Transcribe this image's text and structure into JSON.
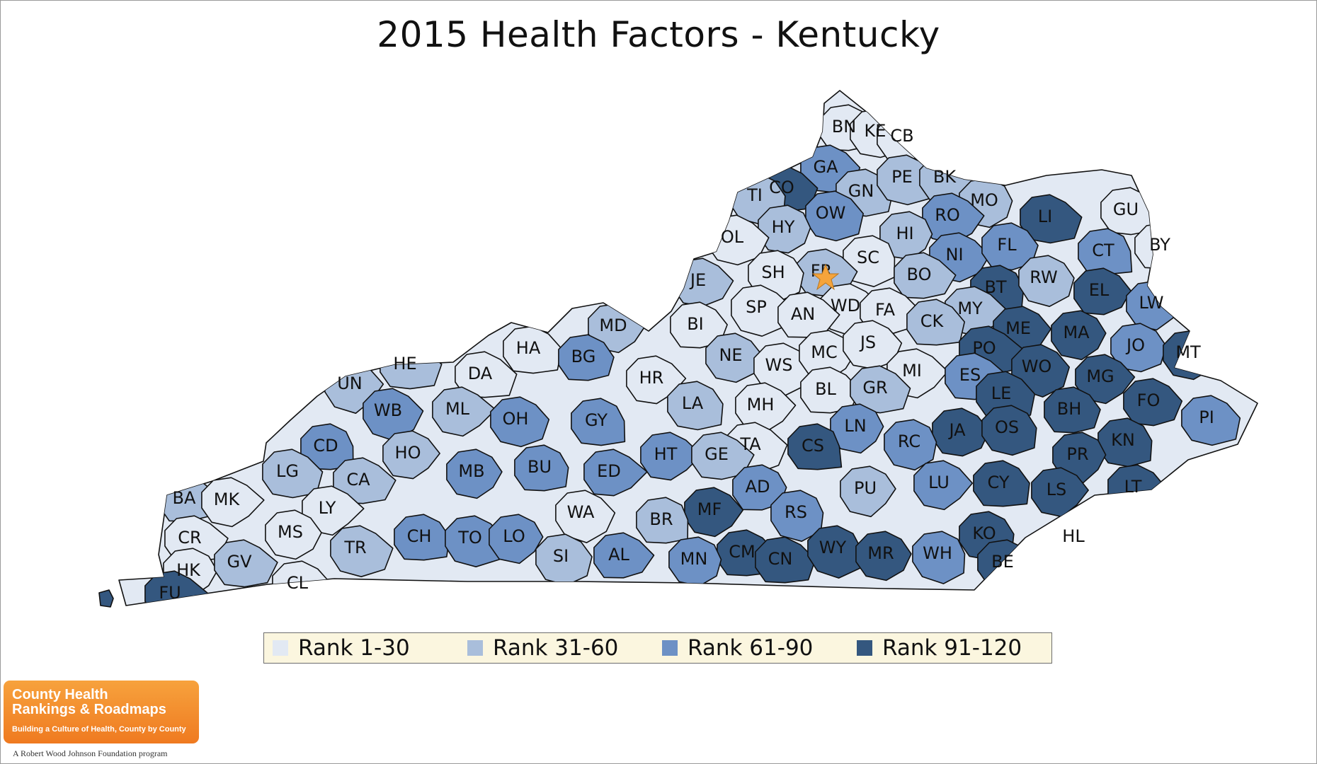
{
  "title": "2015 Health Factors - Kentucky",
  "colors": {
    "rank1": "#e2e9f3",
    "rank2": "#a9bedb",
    "rank3": "#6d91c5",
    "rank4": "#34577f",
    "star": "#f5a43b"
  },
  "legend": [
    {
      "label": "Rank 1-30",
      "color": "#e2e9f3"
    },
    {
      "label": "Rank 31-60",
      "color": "#a9bedb"
    },
    {
      "label": "Rank 61-90",
      "color": "#6d91c5"
    },
    {
      "label": "Rank 91-120",
      "color": "#34577f"
    }
  ],
  "counties": [
    {
      "label": "BN",
      "rank_group": 1
    },
    {
      "label": "KE",
      "rank_group": 1
    },
    {
      "label": "CB",
      "rank_group": 1
    },
    {
      "label": "GA",
      "rank_group": 3
    },
    {
      "label": "CO",
      "rank_group": 4
    },
    {
      "label": "TI",
      "rank_group": 2
    },
    {
      "label": "GN",
      "rank_group": 2
    },
    {
      "label": "PE",
      "rank_group": 2
    },
    {
      "label": "BK",
      "rank_group": 2
    },
    {
      "label": "MO",
      "rank_group": 2
    },
    {
      "label": "LI",
      "rank_group": 4
    },
    {
      "label": "GU",
      "rank_group": 1
    },
    {
      "label": "BY",
      "rank_group": 1
    },
    {
      "label": "OW",
      "rank_group": 3
    },
    {
      "label": "RO",
      "rank_group": 3
    },
    {
      "label": "HY",
      "rank_group": 2
    },
    {
      "label": "OL",
      "rank_group": 1
    },
    {
      "label": "HI",
      "rank_group": 2
    },
    {
      "label": "NI",
      "rank_group": 3
    },
    {
      "label": "FL",
      "rank_group": 3
    },
    {
      "label": "CT",
      "rank_group": 3
    },
    {
      "label": "SC",
      "rank_group": 1
    },
    {
      "label": "FR",
      "rank_group": 2
    },
    {
      "label": "SH",
      "rank_group": 1
    },
    {
      "label": "JE",
      "rank_group": 2
    },
    {
      "label": "BO",
      "rank_group": 2
    },
    {
      "label": "BT",
      "rank_group": 4
    },
    {
      "label": "RW",
      "rank_group": 2
    },
    {
      "label": "EL",
      "rank_group": 4
    },
    {
      "label": "LW",
      "rank_group": 3
    },
    {
      "label": "MD",
      "rank_group": 2
    },
    {
      "label": "SP",
      "rank_group": 1
    },
    {
      "label": "WD",
      "rank_group": 1
    },
    {
      "label": "FA",
      "rank_group": 1
    },
    {
      "label": "MY",
      "rank_group": 2
    },
    {
      "label": "BI",
      "rank_group": 1
    },
    {
      "label": "AN",
      "rank_group": 1
    },
    {
      "label": "CK",
      "rank_group": 2
    },
    {
      "label": "ME",
      "rank_group": 4
    },
    {
      "label": "MA",
      "rank_group": 4
    },
    {
      "label": "HA",
      "rank_group": 1
    },
    {
      "label": "PO",
      "rank_group": 4
    },
    {
      "label": "JO",
      "rank_group": 3
    },
    {
      "label": "MT",
      "rank_group": 4
    },
    {
      "label": "HE",
      "rank_group": 2
    },
    {
      "label": "DA",
      "rank_group": 1
    },
    {
      "label": "BG",
      "rank_group": 3
    },
    {
      "label": "HR",
      "rank_group": 1
    },
    {
      "label": "NE",
      "rank_group": 2
    },
    {
      "label": "WS",
      "rank_group": 1
    },
    {
      "label": "MC",
      "rank_group": 1
    },
    {
      "label": "JS",
      "rank_group": 1
    },
    {
      "label": "MI",
      "rank_group": 1
    },
    {
      "label": "WO",
      "rank_group": 4
    },
    {
      "label": "ES",
      "rank_group": 3
    },
    {
      "label": "UN",
      "rank_group": 2
    },
    {
      "label": "MG",
      "rank_group": 4
    },
    {
      "label": "BL",
      "rank_group": 1
    },
    {
      "label": "GR",
      "rank_group": 2
    },
    {
      "label": "LE",
      "rank_group": 4
    },
    {
      "label": "FO",
      "rank_group": 4
    },
    {
      "label": "PI",
      "rank_group": 3
    },
    {
      "label": "WB",
      "rank_group": 3
    },
    {
      "label": "ML",
      "rank_group": 2
    },
    {
      "label": "LA",
      "rank_group": 2
    },
    {
      "label": "MH",
      "rank_group": 1
    },
    {
      "label": "BH",
      "rank_group": 4
    },
    {
      "label": "OH",
      "rank_group": 3
    },
    {
      "label": "GY",
      "rank_group": 3
    },
    {
      "label": "CD",
      "rank_group": 3
    },
    {
      "label": "LN",
      "rank_group": 3
    },
    {
      "label": "JA",
      "rank_group": 4
    },
    {
      "label": "OS",
      "rank_group": 4
    },
    {
      "label": "KN",
      "rank_group": 4
    },
    {
      "label": "HO",
      "rank_group": 2
    },
    {
      "label": "TA",
      "rank_group": 1
    },
    {
      "label": "CS",
      "rank_group": 4
    },
    {
      "label": "RC",
      "rank_group": 3
    },
    {
      "label": "HT",
      "rank_group": 3
    },
    {
      "label": "GE",
      "rank_group": 2
    },
    {
      "label": "PR",
      "rank_group": 4
    },
    {
      "label": "LG",
      "rank_group": 2
    },
    {
      "label": "MB",
      "rank_group": 3
    },
    {
      "label": "BU",
      "rank_group": 3
    },
    {
      "label": "ED",
      "rank_group": 3
    },
    {
      "label": "CA",
      "rank_group": 2
    },
    {
      "label": "CY",
      "rank_group": 4
    },
    {
      "label": "LS",
      "rank_group": 4
    },
    {
      "label": "LT",
      "rank_group": 4
    },
    {
      "label": "AD",
      "rank_group": 3
    },
    {
      "label": "PU",
      "rank_group": 2
    },
    {
      "label": "LU",
      "rank_group": 3
    },
    {
      "label": "BA",
      "rank_group": 2
    },
    {
      "label": "MK",
      "rank_group": 1
    },
    {
      "label": "LY",
      "rank_group": 1
    },
    {
      "label": "WA",
      "rank_group": 1
    },
    {
      "label": "MF",
      "rank_group": 4
    },
    {
      "label": "RS",
      "rank_group": 3
    },
    {
      "label": "BR",
      "rank_group": 2
    },
    {
      "label": "CR",
      "rank_group": 1
    },
    {
      "label": "MS",
      "rank_group": 1
    },
    {
      "label": "CH",
      "rank_group": 3
    },
    {
      "label": "TO",
      "rank_group": 3
    },
    {
      "label": "LO",
      "rank_group": 3
    },
    {
      "label": "KO",
      "rank_group": 4
    },
    {
      "label": "HL",
      "rank_group": 4
    },
    {
      "label": "TR",
      "rank_group": 2
    },
    {
      "label": "SI",
      "rank_group": 2
    },
    {
      "label": "AL",
      "rank_group": 3
    },
    {
      "label": "CM",
      "rank_group": 4
    },
    {
      "label": "CN",
      "rank_group": 4
    },
    {
      "label": "WY",
      "rank_group": 4
    },
    {
      "label": "MR",
      "rank_group": 4
    },
    {
      "label": "WH",
      "rank_group": 3
    },
    {
      "label": "BE",
      "rank_group": 4
    },
    {
      "label": "MN",
      "rank_group": 3
    },
    {
      "label": "HK",
      "rank_group": 1
    },
    {
      "label": "GV",
      "rank_group": 2
    },
    {
      "label": "CL",
      "rank_group": 1
    },
    {
      "label": "FU",
      "rank_group": 4
    }
  ],
  "logo": {
    "title": "County Health\nRankings & Roadmaps",
    "tagline": "Building a Culture of Health, County by County",
    "sponsor": "A Robert Wood Johnson Foundation program"
  }
}
